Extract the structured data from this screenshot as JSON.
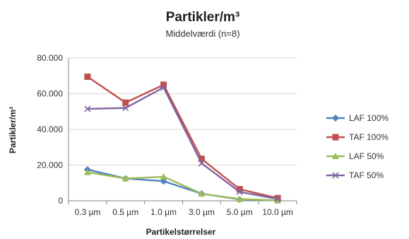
{
  "chart_data": {
    "type": "line",
    "title": "Partikler/m³",
    "subtitle": "Middelværdi (n=8)",
    "xlabel": "Partikelstørrelser",
    "ylabel": "Partikler/m³",
    "categories": [
      "0.3 µm",
      "0.5 µm",
      "1.0 µm",
      "3.0 µm",
      "5.0 µm",
      "10.0 µm"
    ],
    "ylim": [
      0,
      80000
    ],
    "yticks": [
      0,
      20000,
      40000,
      60000,
      80000
    ],
    "ytick_labels": [
      "0",
      "20.000",
      "40.000",
      "60.000",
      "80.000"
    ],
    "grid": true,
    "legend_position": "right",
    "series": [
      {
        "name": "LAF 100%",
        "values": [
          17500,
          12500,
          11000,
          4000,
          800,
          200
        ],
        "color": "#4f81bd",
        "marker": "diamond"
      },
      {
        "name": "TAF 100%",
        "values": [
          69500,
          55000,
          65000,
          23500,
          6500,
          1500
        ],
        "color": "#c0504d",
        "marker": "square"
      },
      {
        "name": "LAF 50%",
        "values": [
          16000,
          12500,
          13500,
          4000,
          1000,
          200
        ],
        "color": "#9bbb59",
        "marker": "triangle"
      },
      {
        "name": "TAF 50%",
        "values": [
          51500,
          52000,
          63500,
          21000,
          5000,
          1000
        ],
        "color": "#8064a2",
        "marker": "x"
      }
    ]
  }
}
